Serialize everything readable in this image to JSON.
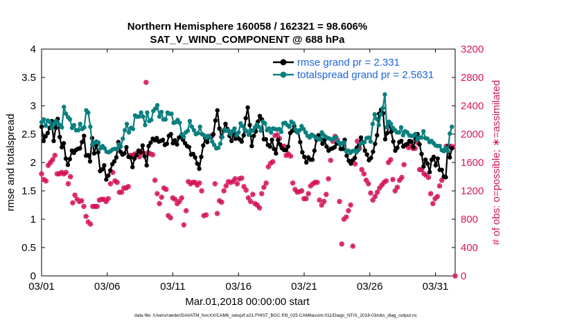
{
  "chart_data": {
    "type": "line",
    "title_line1": "Northern Hemisphere 160058 / 162321 = 98.606%",
    "title_line2": "SAT_V_WIND_COMPONENT @ 688 hPa",
    "xlabel": "Mar.01,2018 00:00:00 start",
    "ylabel_left": "rmse and totalspread",
    "ylabel_right": "# of obs: o=possible; ∗=assimilated",
    "ylim_left": [
      0,
      4
    ],
    "ylim_right": [
      0,
      3200
    ],
    "xlim_days": [
      0,
      31.5
    ],
    "y_ticks_left": [
      "0",
      "0.5",
      "1",
      "1.5",
      "2",
      "2.5",
      "3",
      "3.5",
      "4"
    ],
    "y_ticks_right": [
      "0",
      "400",
      "800",
      "1200",
      "1600",
      "2000",
      "2400",
      "2800",
      "3200"
    ],
    "x_ticks": [
      {
        "day": 0,
        "label": "03/01"
      },
      {
        "day": 5,
        "label": "03/06"
      },
      {
        "day": 10,
        "label": "03/11"
      },
      {
        "day": 15,
        "label": "03/16"
      },
      {
        "day": 20,
        "label": "03/21"
      },
      {
        "day": 25,
        "label": "03/26"
      },
      {
        "day": 30,
        "label": "03/31"
      }
    ],
    "footer": "data file: /Users/raeder/DAI/ATM_forcXX/CAM6_setup/f.e21.FHIST_BGC.f09_025.CAM6assim.011/Diags_NTrS_2018-03/obs_diag_output.nc",
    "series": [
      {
        "name": "rmse grand pr = 2.331",
        "color": "#000000",
        "values": [
          2.63,
          2.38,
          2.46,
          2.52,
          2.61,
          2.73,
          2.38,
          2.61,
          2.77,
          2.45,
          2.27,
          2.34,
          2.07,
          1.96,
          2.06,
          2.21,
          2.17,
          2.22,
          2.24,
          2.25,
          2.36,
          2.47,
          2.12,
          2.13,
          2.02,
          2.43,
          2.16,
          2.3,
          2.18,
          1.85,
          1.88,
          1.95,
          1.7,
          1.77,
          1.86,
          1.97,
          2.02,
          2.09,
          2.36,
          2.19,
          2.14,
          2.16,
          2.27,
          2.1,
          2.09,
          1.92,
          2.07,
          2.13,
          2.21,
          2.18,
          2.3,
          2.11,
          1.95,
          2.29,
          2.35,
          2.42,
          2.39,
          2.43,
          2.37,
          2.38,
          2.4,
          2.31,
          2.33,
          2.47,
          2.5,
          2.34,
          2.39,
          2.32,
          2.44,
          2.46,
          2.4,
          2.34,
          2.29,
          2.27,
          2.14,
          2.15,
          2.09,
          1.98,
          1.89,
          2.1,
          2.3,
          2.43,
          2.36,
          2.45,
          2.45,
          2.5,
          2.74,
          2.92,
          2.6,
          2.45,
          2.56,
          2.68,
          2.59,
          2.47,
          2.38,
          2.5,
          2.42,
          2.44,
          2.41,
          2.37,
          2.48,
          2.78,
          2.97,
          2.66,
          2.29,
          2.47,
          2.55,
          2.72,
          2.82,
          2.76,
          2.41,
          2.41,
          2.31,
          2.28,
          2.4,
          2.24,
          2.16,
          2.4,
          2.32,
          2.25,
          2.22,
          2.22,
          2.28,
          2.52,
          2.56,
          2.64,
          2.55,
          2.55,
          2.36,
          2.18,
          2.1,
          2.0,
          2.09,
          2.05,
          2.05,
          2.21,
          2.4,
          2.48,
          2.42,
          2.33,
          2.4,
          2.28,
          2.21,
          2.24,
          2.25,
          2.27,
          2.33,
          2.34,
          2.24,
          2.24,
          2.4,
          2.12,
          2.03,
          1.98,
          2.04,
          2.08,
          2.26,
          2.3,
          2.44,
          2.36,
          2.21,
          2.14,
          2.04,
          2.08,
          2.19,
          2.33,
          2.48,
          2.86,
          2.93,
          2.87,
          2.41,
          2.52,
          2.68,
          2.54,
          2.37,
          2.21,
          2.26,
          2.36,
          2.38,
          2.28,
          2.31,
          2.33,
          2.38,
          2.37,
          2.27,
          2.42,
          2.5,
          2.32,
          2.15,
          1.93,
          2.05,
          1.98,
          1.83,
          2.05,
          2.1,
          1.95,
          2.07,
          1.87,
          1.87,
          1.75,
          1.74,
          2.28,
          2.09,
          2.25
        ]
      },
      {
        "name": "totalspread grand pr = 2.5631",
        "color": "#0b7f7f",
        "values": [
          2.71,
          2.76,
          2.65,
          2.74,
          2.72,
          2.61,
          2.68,
          2.73,
          2.7,
          2.66,
          2.62,
          2.98,
          2.86,
          2.8,
          2.76,
          2.61,
          2.66,
          2.57,
          2.57,
          2.68,
          2.59,
          2.62,
          2.92,
          2.88,
          2.63,
          2.31,
          2.35,
          2.37,
          2.35,
          2.25,
          2.29,
          2.25,
          2.19,
          2.18,
          2.2,
          2.23,
          2.24,
          2.24,
          2.32,
          2.28,
          2.42,
          2.57,
          2.68,
          2.53,
          2.61,
          2.59,
          2.83,
          2.81,
          2.81,
          2.88,
          2.81,
          2.66,
          2.88,
          2.73,
          2.75,
          2.91,
          2.95,
          3.01,
          2.81,
          2.89,
          2.76,
          2.76,
          2.88,
          2.86,
          2.86,
          2.7,
          2.71,
          2.75,
          2.7,
          2.5,
          2.45,
          2.53,
          2.56,
          2.73,
          2.63,
          2.57,
          2.5,
          2.52,
          2.63,
          2.5,
          2.48,
          2.44,
          2.47,
          2.44,
          2.37,
          2.31,
          2.25,
          2.26,
          2.33,
          2.45,
          2.58,
          2.56,
          2.57,
          2.5,
          2.55,
          2.6,
          2.48,
          2.53,
          2.69,
          2.64,
          2.58,
          2.55,
          2.49,
          2.57,
          2.56,
          2.62,
          2.67,
          2.63,
          2.56,
          2.72,
          2.69,
          2.57,
          2.6,
          2.53,
          2.6,
          2.59,
          2.58,
          2.59,
          2.54,
          2.69,
          2.7,
          2.66,
          2.63,
          2.72,
          2.69,
          2.58,
          2.53,
          2.57,
          2.64,
          2.59,
          2.53,
          2.47,
          2.44,
          2.49,
          2.47,
          2.44,
          2.42,
          2.41,
          2.53,
          2.48,
          2.45,
          2.43,
          2.42,
          2.4,
          2.43,
          2.45,
          2.37,
          2.32,
          2.34,
          2.35,
          2.2,
          2.21,
          2.17,
          2.2,
          2.21,
          2.18,
          2.22,
          2.33,
          2.35,
          2.36,
          2.43,
          2.44,
          2.37,
          2.68,
          2.85,
          2.77,
          2.66,
          2.85,
          2.96,
          3.2,
          2.62,
          2.72,
          2.68,
          2.61,
          2.57,
          2.53,
          2.53,
          2.62,
          2.48,
          2.55,
          2.53,
          2.48,
          2.47,
          2.47,
          2.5,
          2.4,
          2.44,
          2.44,
          2.55,
          2.43,
          2.42,
          2.36,
          2.38,
          2.34,
          2.3,
          2.29,
          2.29,
          2.22,
          2.2,
          2.26,
          2.2,
          2.51,
          2.63
        ]
      }
    ],
    "obs_possible_color": "#d4145a",
    "obs_assimilated_color": "#d4145a",
    "obs_possible": [
      1440,
      1360,
      1340,
      1560,
      1600,
      1640,
      1700,
      1440,
      1440,
      1460,
      1440,
      1460,
      1300,
      1400,
      1030,
      1140,
      1080,
      1050,
      1060,
      980,
      840,
      760,
      730,
      980,
      980,
      980,
      1070,
      1080,
      1080,
      1050,
      1090,
      1300,
      1460,
      1340,
      1320,
      1180,
      1180,
      1240,
      1240,
      1260,
      1700,
      1700,
      1720,
      1730,
      1680,
      1740,
      1730,
      2730,
      1740,
      1720,
      1710,
      1350,
      1160,
      1020,
      1110,
      1240,
      1220,
      850,
      820,
      1100,
      1080,
      1020,
      1050,
      1100,
      720,
      920,
      1330,
      1300,
      1320,
      1320,
      1280,
      1310,
      1200,
      850,
      860,
      1960,
      1970,
      1990,
      1300,
      880,
      1060,
      1040,
      1200,
      1270,
      1330,
      1320,
      1330,
      1370,
      1300,
      1370,
      1380,
      1260,
      1210,
      1100,
      1050,
      1150,
      1020,
      1000,
      960,
      1160,
      1250,
      1310,
      1540,
      1590,
      1610,
      1980,
      1990,
      1940,
      1820,
      1830,
      1700,
      1720,
      1690,
      1310,
      1220,
      1180,
      1190,
      1200,
      1090,
      1090,
      1160,
      1270,
      1300,
      1320,
      1320,
      1070,
      1000,
      1050,
      1150,
      1370,
      1630,
      1900,
      1970,
      1920,
      1050,
      450,
      800,
      830,
      920,
      1000,
      420,
      1580,
      1900,
      1800,
      1500,
      1440,
      1350,
      1300,
      1170,
      1070,
      1120,
      1180,
      1240,
      1280,
      1320,
      1340,
      1600,
      1640,
      1360,
      1200,
      1250,
      1350,
      1390,
      1570,
      1850,
      1810,
      1840,
      1800,
      1800,
      1880,
      1500,
      1500,
      1440,
      1420,
      1390,
      1160,
      1020,
      1090,
      1120,
      1270,
      1350,
      1770,
      1830,
      1830,
      1830,
      1820,
      0
    ]
  }
}
